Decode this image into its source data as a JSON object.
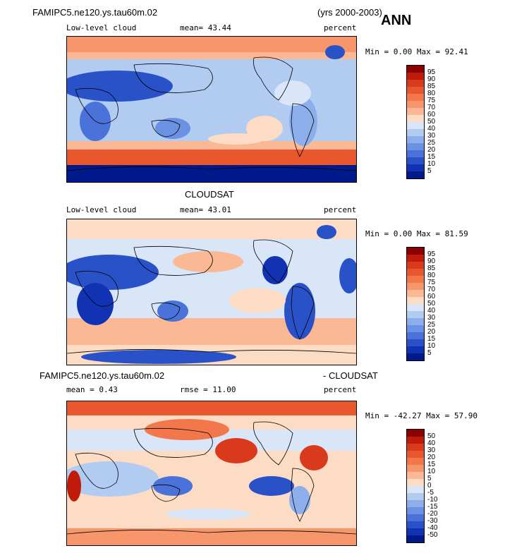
{
  "header": {
    "case_name": "FAMIPC5.ne120.ys.tau60m.02",
    "years": "(yrs 2000-2003)",
    "season": "ANN"
  },
  "panel1": {
    "variable": "Low-level cloud",
    "mean_text": "mean=  43.44",
    "units": "percent",
    "minmax": "Min =   0.00 Max =  92.41"
  },
  "panel2": {
    "title": "CLOUDSAT",
    "variable": "Low-level cloud",
    "mean_text": "mean=  43.01",
    "units": "percent",
    "minmax": "Min =   0.00 Max =  81.59"
  },
  "panel3": {
    "title_left": "FAMIPC5.ne120.ys.tau60m.02",
    "title_right": "- CLOUDSAT",
    "mean_text": "mean =   0.43",
    "rmse_text": "rmse =  11.00",
    "units": "percent",
    "minmax": "Min = -42.27 Max =  57.90"
  },
  "colorbar_abs": {
    "labels": [
      "95",
      "90",
      "85",
      "80",
      "75",
      "70",
      "60",
      "50",
      "40",
      "30",
      "25",
      "20",
      "15",
      "10",
      "5"
    ],
    "colors": [
      "#8b0000",
      "#c01a0a",
      "#d93a1c",
      "#e8572e",
      "#f2774a",
      "#f7966a",
      "#fab894",
      "#fcdcc4",
      "#d8e6f8",
      "#b2cbf1",
      "#8caeea",
      "#6b91e3",
      "#4a72d8",
      "#2a52c8",
      "#1232b4",
      "#001a8c"
    ]
  },
  "colorbar_diff": {
    "labels": [
      "50",
      "40",
      "30",
      "20",
      "15",
      "10",
      "5",
      "0",
      "-5",
      "-10",
      "-15",
      "-20",
      "-30",
      "-40",
      "-50"
    ],
    "colors": [
      "#8b0000",
      "#c01a0a",
      "#d93a1c",
      "#e8572e",
      "#f2774a",
      "#f7966a",
      "#fab894",
      "#fcdcc4",
      "#d8e6f8",
      "#b2cbf1",
      "#8caeea",
      "#6b91e3",
      "#4a72d8",
      "#2a52c8",
      "#1232b4",
      "#001a8c"
    ]
  }
}
